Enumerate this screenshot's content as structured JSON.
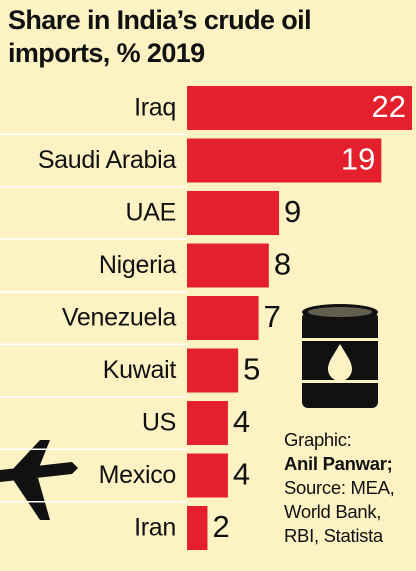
{
  "chart_data": {
    "type": "bar",
    "orientation": "horizontal",
    "title": [
      "Share in India’s crude oil",
      "imports, % 2019"
    ],
    "categories": [
      "Iraq",
      "Saudi Arabia",
      "UAE",
      "Nigeria",
      "Venezuela",
      "Kuwait",
      "US",
      "Mexico",
      "Iran"
    ],
    "values": [
      22,
      19,
      9,
      8,
      7,
      5,
      4,
      4,
      2
    ],
    "color": "#e3202b",
    "credit": {
      "label": "Graphic:",
      "author": "Anil Panwar;",
      "source": "Source: MEA, World Bank, RBI, Statista"
    }
  }
}
